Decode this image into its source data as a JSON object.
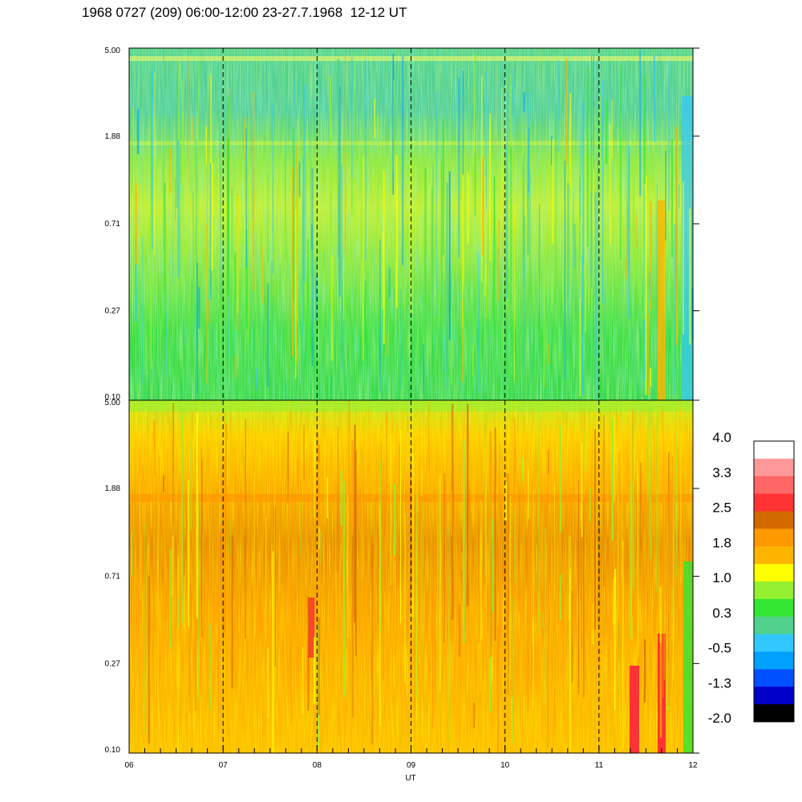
{
  "title": "1968 0727 (209) 06:00-12:00 23-27.7.1968  12-12 UT",
  "chart_data": [
    {
      "type": "heatmap",
      "panel": "top",
      "x_range": [
        6,
        12
      ],
      "y_scale": "log",
      "y_ticks": [
        "5.00",
        "1.88",
        "0.71",
        "0.27",
        "0.10"
      ],
      "y_range": [
        0.1,
        5.0
      ],
      "dominant_level": 0.3,
      "vertical_dashed_lines_at": [
        7,
        8,
        9,
        10,
        11
      ]
    },
    {
      "type": "heatmap",
      "panel": "bottom",
      "x_range": [
        6,
        12
      ],
      "y_scale": "log",
      "y_ticks": [
        "5.00",
        "1.88",
        "0.71",
        "0.27",
        "0.10"
      ],
      "y_range": [
        0.1,
        5.0
      ],
      "dominant_level": 1.8,
      "vertical_dashed_lines_at": [
        7,
        8,
        9,
        10,
        11
      ]
    }
  ],
  "x_axis": {
    "ticks": [
      "06",
      "07",
      "08",
      "09",
      "10",
      "11",
      "12"
    ],
    "label": "UT"
  },
  "colorbar": {
    "labels": [
      "4.0",
      "3.3",
      "2.5",
      "1.8",
      "1.0",
      "0.3",
      "-0.5",
      "-1.3",
      "-2.0"
    ],
    "colors": [
      "#ffffff",
      "#ff9999",
      "#ff6666",
      "#ff3333",
      "#d26a00",
      "#ff9900",
      "#ffb400",
      "#ffff00",
      "#96f032",
      "#32e632",
      "#50d28c",
      "#32c8ff",
      "#00a0ff",
      "#0050ff",
      "#0000c8",
      "#000000"
    ]
  }
}
